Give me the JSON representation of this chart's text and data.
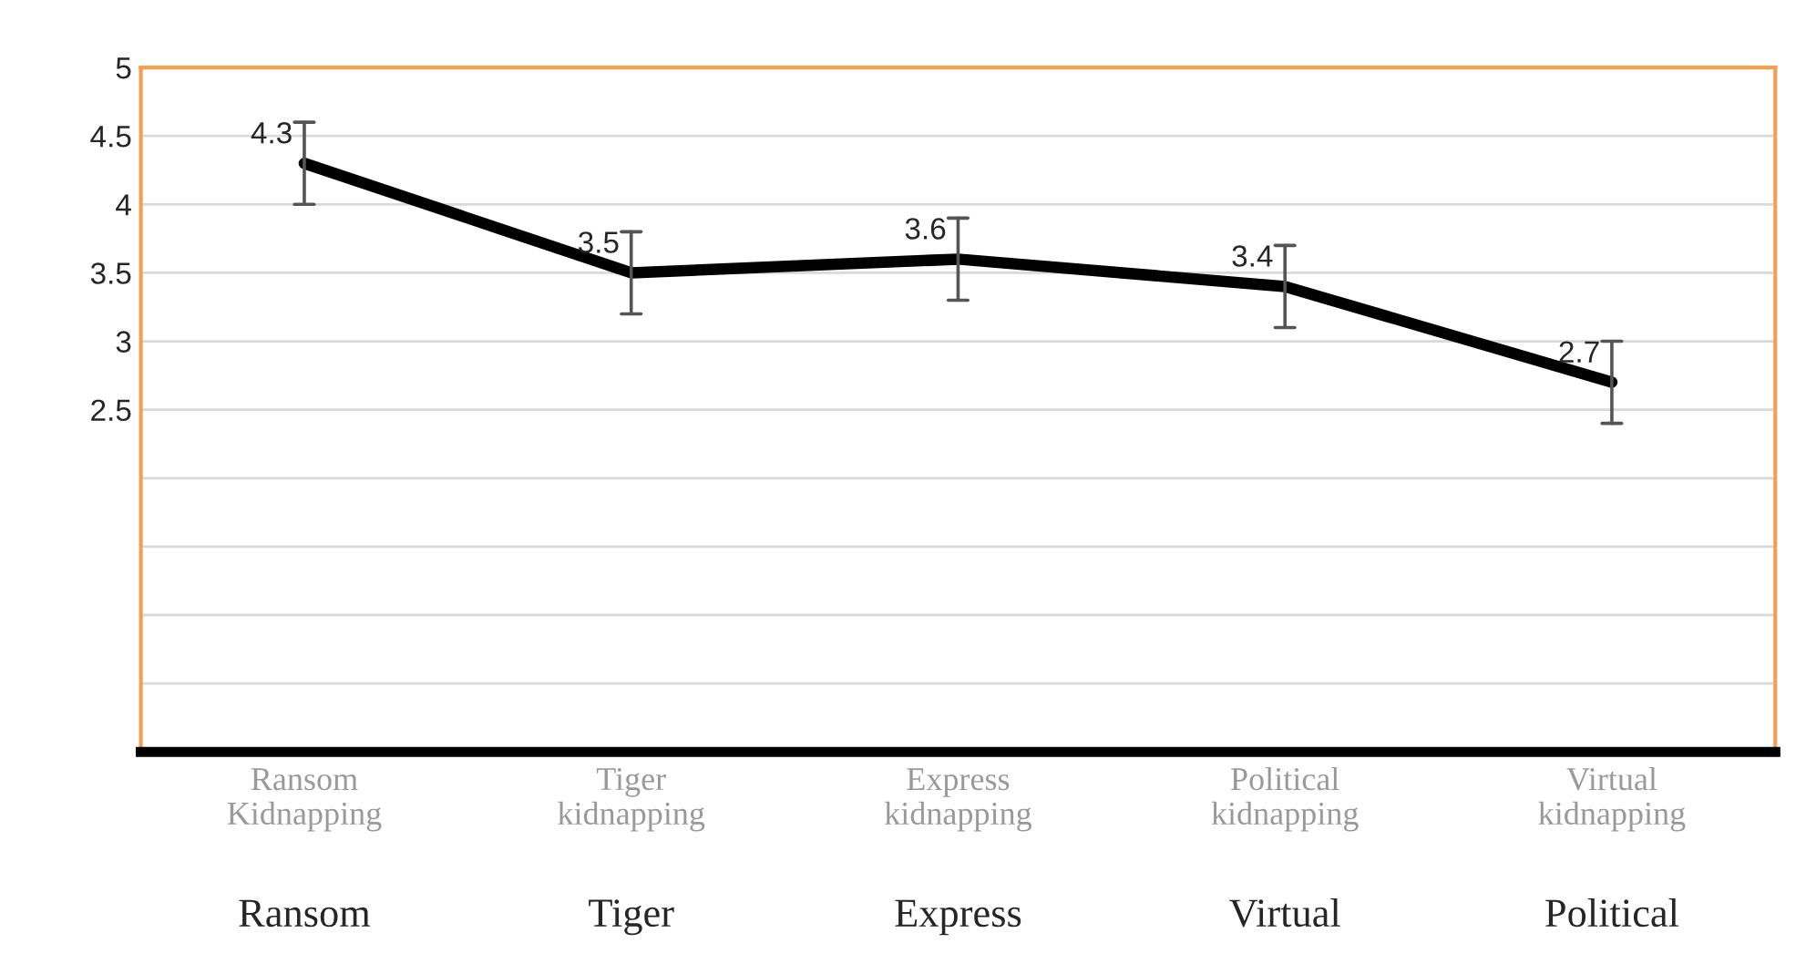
{
  "chart_data": {
    "type": "line",
    "categories": [
      "Ransom Kidnapping",
      "Tiger kidnapping",
      "Express kidnapping",
      "Political kidnapping",
      "Virtual kidnapping"
    ],
    "series": [
      {
        "color": "#000000",
        "values": [
          4.3,
          3.5,
          3.6,
          3.4,
          2.7
        ],
        "errors": [
          0.3,
          0.3,
          0.3,
          0.3,
          0.3
        ]
      }
    ],
    "data_labels": true,
    "ylim": [
      0,
      5
    ],
    "yticks": [
      5,
      4.5,
      4,
      3.5,
      3,
      2.5,
      {
        "value": 2,
        "label": null
      },
      {
        "value": 1.5,
        "label": null
      },
      {
        "value": 1,
        "label": null
      },
      {
        "value": 0.5,
        "label": null
      },
      {
        "value": 0,
        "label": null
      }
    ],
    "grid": "y",
    "marker": "none",
    "line_style": "solid",
    "annotations": [
      "Ransom",
      "Tiger",
      "Express",
      "Virtual",
      "Political"
    ]
  }
}
